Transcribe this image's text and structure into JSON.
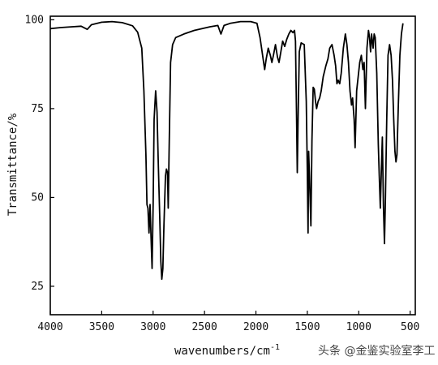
{
  "chart_data": {
    "type": "line",
    "xlabel": "wavenumbers/cm",
    "xlabel_sup": "-1",
    "ylabel": "Transmittance/%",
    "xlim": [
      4000,
      450
    ],
    "ylim": [
      17,
      101
    ],
    "x_ticks": [
      4000,
      3500,
      3000,
      2500,
      2000,
      1500,
      1000,
      500
    ],
    "x_tick_labels": [
      "4000",
      "3500",
      "3000",
      "2500",
      "2000",
      "1500",
      "1000",
      "500"
    ],
    "y_ticks": [
      100,
      75,
      50,
      25
    ],
    "y_tick_labels": [
      "100",
      "75",
      "50",
      "25"
    ],
    "grid": false,
    "series": [
      {
        "color": "#000000",
        "points": [
          [
            4000,
            97.5
          ],
          [
            3900,
            97.8
          ],
          [
            3800,
            98
          ],
          [
            3700,
            98.2
          ],
          [
            3640,
            97.3
          ],
          [
            3600,
            98.6
          ],
          [
            3500,
            99.3
          ],
          [
            3400,
            99.5
          ],
          [
            3300,
            99.2
          ],
          [
            3200,
            98.3
          ],
          [
            3150,
            96.5
          ],
          [
            3110,
            92
          ],
          [
            3090,
            80
          ],
          [
            3070,
            62
          ],
          [
            3060,
            48
          ],
          [
            3050,
            47
          ],
          [
            3040,
            40
          ],
          [
            3030,
            48
          ],
          [
            3020,
            39
          ],
          [
            3010,
            30
          ],
          [
            3000,
            48
          ],
          [
            2990,
            72
          ],
          [
            2975,
            80
          ],
          [
            2962,
            74
          ],
          [
            2950,
            60
          ],
          [
            2935,
            44
          ],
          [
            2925,
            32
          ],
          [
            2915,
            27
          ],
          [
            2905,
            30
          ],
          [
            2895,
            42
          ],
          [
            2880,
            56
          ],
          [
            2870,
            58
          ],
          [
            2860,
            57
          ],
          [
            2853,
            47
          ],
          [
            2845,
            62
          ],
          [
            2830,
            88
          ],
          [
            2810,
            93
          ],
          [
            2780,
            95
          ],
          [
            2700,
            96
          ],
          [
            2600,
            97
          ],
          [
            2450,
            98
          ],
          [
            2370,
            98.4
          ],
          [
            2340,
            96
          ],
          [
            2310,
            98.4
          ],
          [
            2250,
            99
          ],
          [
            2150,
            99.5
          ],
          [
            2050,
            99.5
          ],
          [
            1990,
            99
          ],
          [
            1960,
            95
          ],
          [
            1930,
            89
          ],
          [
            1915,
            86
          ],
          [
            1900,
            89
          ],
          [
            1880,
            92
          ],
          [
            1860,
            90
          ],
          [
            1845,
            88
          ],
          [
            1830,
            90
          ],
          [
            1810,
            93
          ],
          [
            1790,
            89.5
          ],
          [
            1775,
            88
          ],
          [
            1760,
            90.5
          ],
          [
            1740,
            94
          ],
          [
            1720,
            92.5
          ],
          [
            1700,
            94.5
          ],
          [
            1680,
            96
          ],
          [
            1660,
            97
          ],
          [
            1640,
            96.4
          ],
          [
            1625,
            97
          ],
          [
            1615,
            94
          ],
          [
            1605,
            73
          ],
          [
            1598,
            57
          ],
          [
            1590,
            72
          ],
          [
            1578,
            91
          ],
          [
            1560,
            93.5
          ],
          [
            1530,
            93
          ],
          [
            1510,
            77
          ],
          [
            1500,
            57
          ],
          [
            1493,
            40
          ],
          [
            1487,
            63
          ],
          [
            1478,
            55
          ],
          [
            1465,
            42
          ],
          [
            1455,
            66
          ],
          [
            1443,
            81
          ],
          [
            1432,
            80.5
          ],
          [
            1420,
            77
          ],
          [
            1410,
            75
          ],
          [
            1395,
            77
          ],
          [
            1380,
            78
          ],
          [
            1365,
            80
          ],
          [
            1345,
            84
          ],
          [
            1320,
            87
          ],
          [
            1300,
            89
          ],
          [
            1282,
            92
          ],
          [
            1260,
            93
          ],
          [
            1240,
            90
          ],
          [
            1225,
            87
          ],
          [
            1212,
            82
          ],
          [
            1200,
            83
          ],
          [
            1185,
            82
          ],
          [
            1170,
            85
          ],
          [
            1150,
            92
          ],
          [
            1130,
            96
          ],
          [
            1115,
            93
          ],
          [
            1100,
            88
          ],
          [
            1085,
            80
          ],
          [
            1070,
            76
          ],
          [
            1060,
            78
          ],
          [
            1045,
            72
          ],
          [
            1035,
            64
          ],
          [
            1020,
            80
          ],
          [
            1005,
            84
          ],
          [
            990,
            88
          ],
          [
            975,
            90
          ],
          [
            960,
            86
          ],
          [
            948,
            88
          ],
          [
            935,
            75
          ],
          [
            920,
            92
          ],
          [
            905,
            97
          ],
          [
            895,
            95
          ],
          [
            885,
            91
          ],
          [
            875,
            96
          ],
          [
            860,
            92
          ],
          [
            850,
            96
          ],
          [
            840,
            95
          ],
          [
            825,
            85
          ],
          [
            810,
            65
          ],
          [
            800,
            56
          ],
          [
            790,
            47
          ],
          [
            780,
            58
          ],
          [
            770,
            67
          ],
          [
            760,
            48
          ],
          [
            750,
            37
          ],
          [
            740,
            50
          ],
          [
            728,
            72
          ],
          [
            715,
            90
          ],
          [
            700,
            93
          ],
          [
            685,
            90
          ],
          [
            672,
            83
          ],
          [
            660,
            72
          ],
          [
            648,
            63
          ],
          [
            638,
            60
          ],
          [
            628,
            62
          ],
          [
            615,
            76
          ],
          [
            600,
            90
          ],
          [
            585,
            96
          ],
          [
            570,
            99
          ]
        ]
      }
    ]
  },
  "watermark": "头条 @金鉴实验室李工"
}
